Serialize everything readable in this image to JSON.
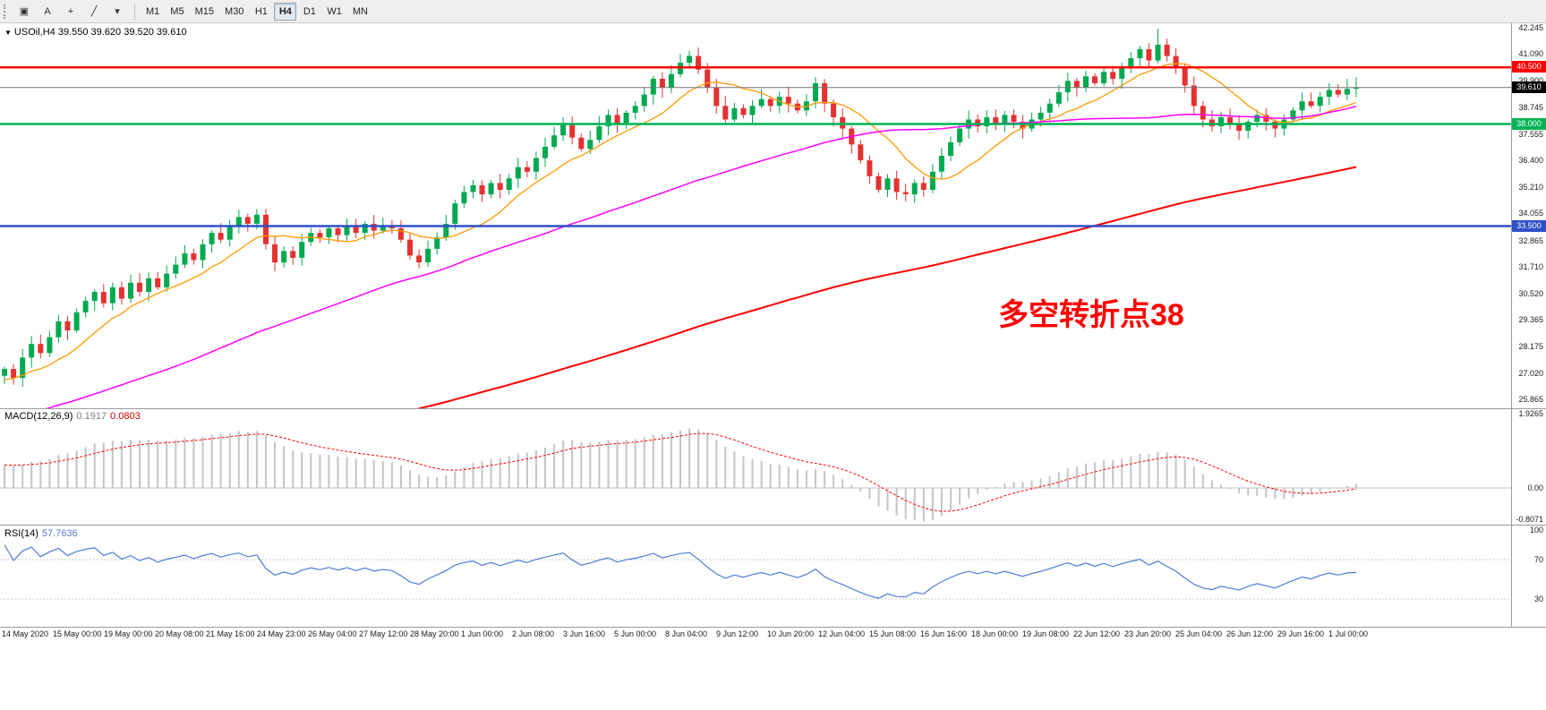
{
  "toolbar": {
    "left_buttons": [
      {
        "name": "chart-window-icon",
        "glyph": "▣"
      },
      {
        "name": "text-tool-icon",
        "glyph": "A"
      },
      {
        "name": "crosshair-icon",
        "glyph": "+"
      },
      {
        "name": "draw-tools-icon",
        "glyph": "╱"
      },
      {
        "name": "dropdown-caret-icon",
        "glyph": "▾"
      }
    ],
    "timeframes": [
      "M1",
      "M5",
      "M15",
      "M30",
      "H1",
      "H4",
      "D1",
      "W1",
      "MN"
    ],
    "active_timeframe": "H4"
  },
  "chart": {
    "legend_arrow": "▼",
    "legend": "USOil,H4 39.550 39.620 39.520 39.610"
  },
  "chart_data": {
    "type": "candlestick",
    "symbol": "USOil",
    "timeframe": "H4",
    "ohlc_display": {
      "open": "39.550",
      "high": "39.620",
      "low": "39.520",
      "close": "39.610"
    },
    "closes": [
      27.2,
      26.8,
      27.7,
      28.3,
      27.9,
      28.6,
      29.3,
      28.9,
      29.7,
      30.2,
      30.6,
      30.1,
      30.8,
      30.3,
      31.0,
      30.6,
      31.2,
      30.8,
      31.4,
      31.8,
      32.3,
      32.0,
      32.7,
      33.2,
      32.9,
      33.5,
      33.9,
      33.6,
      34.0,
      32.7,
      31.9,
      32.4,
      32.1,
      32.8,
      33.2,
      33.0,
      33.4,
      33.1,
      33.5,
      33.2,
      33.6,
      33.3,
      33.5,
      33.4,
      32.9,
      32.2,
      31.9,
      32.5,
      33.0,
      33.6,
      34.5,
      35.0,
      35.3,
      34.9,
      35.4,
      35.1,
      35.6,
      36.1,
      35.9,
      36.5,
      37.0,
      37.5,
      38.0,
      37.4,
      36.9,
      37.3,
      37.9,
      38.4,
      38.0,
      38.5,
      38.8,
      39.3,
      40.0,
      39.6,
      40.2,
      40.7,
      41.0,
      40.4,
      39.6,
      38.8,
      38.2,
      38.7,
      38.4,
      38.8,
      39.1,
      38.8,
      39.2,
      38.9,
      38.6,
      39.0,
      39.8,
      38.9,
      38.3,
      37.8,
      37.1,
      36.4,
      35.7,
      35.1,
      35.6,
      35.0,
      34.9,
      35.4,
      35.1,
      35.9,
      36.6,
      37.2,
      37.8,
      38.2,
      37.9,
      38.3,
      38.0,
      38.4,
      38.1,
      37.8,
      38.2,
      38.5,
      38.9,
      39.4,
      39.9,
      39.6,
      40.1,
      39.8,
      40.3,
      40.0,
      40.5,
      40.9,
      41.3,
      40.8,
      41.5,
      41.0,
      40.5,
      39.7,
      38.8,
      38.2,
      37.9,
      38.3,
      38.0,
      37.7,
      38.1,
      38.4,
      38.1,
      37.8,
      38.2,
      38.6,
      39.0,
      38.8,
      39.2,
      39.5,
      39.3,
      39.55,
      39.61
    ],
    "global_high": 42.2,
    "candle_colors": {
      "up": "#00A94F",
      "down": "#E53131"
    },
    "moving_averages": [
      {
        "name": "ma-fast",
        "period": 10,
        "color": "#FF9900"
      },
      {
        "name": "ma-medium",
        "period": 50,
        "color": "#FF00FF"
      },
      {
        "name": "ma-slow",
        "period": 150,
        "color": "#FF0000"
      }
    ],
    "hlines": [
      {
        "price": 40.5,
        "label": "40.500",
        "color": "#FF0000",
        "width": 2.5
      },
      {
        "price": 38.0,
        "label": "38.000",
        "color": "#00B455",
        "width": 2.5
      },
      {
        "price": 33.5,
        "label": "33.500",
        "color": "#3050C8",
        "width": 2.5
      }
    ],
    "bid_line": {
      "price": 39.61,
      "label": "39.610",
      "color": "#777777",
      "tag_bg": "#000000"
    },
    "price_axis_ticks": [
      "42.245",
      "41.090",
      "39.900",
      "38.745",
      "37.555",
      "36.400",
      "35.210",
      "34.055",
      "32.865",
      "31.710",
      "30.520",
      "29.365",
      "28.175",
      "27.020",
      "25.865"
    ],
    "time_axis_ticks": [
      "14 May 2020",
      "15 May 00:00",
      "19 May 00:00",
      "20 May 08:00",
      "21 May 16:00",
      "24 May 23:00",
      "26 May 04:00",
      "27 May 12:00",
      "28 May 20:00",
      "1 Jun 00:00",
      "2 Jun 08:00",
      "3 Jun 16:00",
      "5 Jun 00:00",
      "8 Jun 04:00",
      "9 Jun 12:00",
      "10 Jun 20:00",
      "12 Jun 04:00",
      "15 Jun 08:00",
      "16 Jun 16:00",
      "18 Jun 00:00",
      "19 Jun 08:00",
      "22 Jun 12:00",
      "23 Jun 20:00",
      "25 Jun 04:00",
      "26 Jun 12:00",
      "29 Jun 16:00",
      "1 Jul 00:00"
    ],
    "indicators": {
      "macd": {
        "label": "MACD(12,26,9)",
        "value_main": "0.1917",
        "value_signal": "0.0803",
        "axis_ticks": [
          "1.9265",
          "0.00",
          "-0.8071"
        ],
        "hist_color": "#C4C4C4",
        "signal_color": "#FF0000"
      },
      "rsi": {
        "label": "RSI(14)",
        "value": "57.7636",
        "axis_ticks": [
          "100",
          "70",
          "30"
        ],
        "levels": [
          70,
          30
        ],
        "line_color": "#4F7BD9"
      }
    },
    "annotation": {
      "text": "多空转折点38",
      "color": "#FF0000"
    }
  }
}
